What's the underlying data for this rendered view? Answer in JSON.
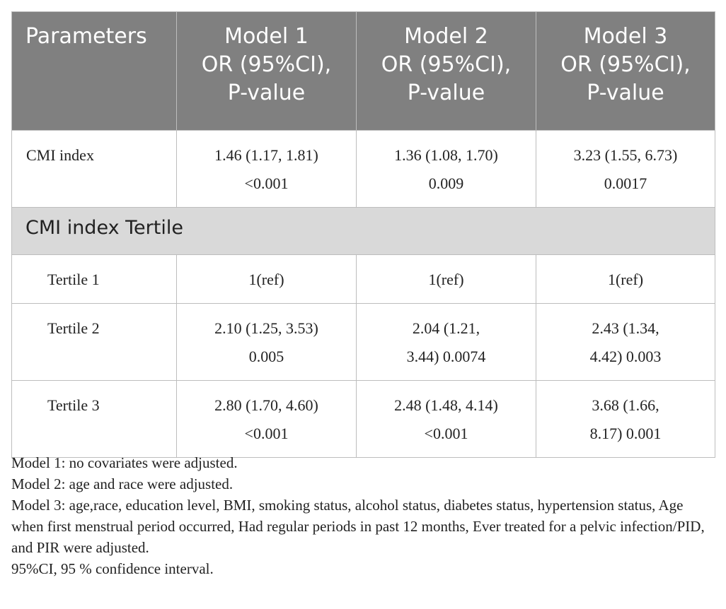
{
  "table": {
    "headers": [
      {
        "lines": [
          "Parameters"
        ]
      },
      {
        "lines": [
          "Model 1",
          "OR (95%CI),",
          "P-value"
        ]
      },
      {
        "lines": [
          "Model 2",
          "OR (95%CI),",
          "P-value"
        ]
      },
      {
        "lines": [
          "Model 3",
          "OR (95%CI),",
          "P-value"
        ]
      }
    ],
    "rows": {
      "cmi": {
        "label": "CMI index",
        "cells": [
          [
            "1.46 (1.17, 1.81)",
            "<0.001"
          ],
          [
            "1.36 (1.08, 1.70)",
            "0.009"
          ],
          [
            "3.23 (1.55, 6.73)",
            "0.0017"
          ]
        ]
      },
      "section": {
        "label": "CMI index Tertile"
      },
      "tertile1": {
        "label": "Tertile 1",
        "cells": [
          [
            "1(ref)"
          ],
          [
            "1(ref)"
          ],
          [
            "1(ref)"
          ]
        ]
      },
      "tertile2": {
        "label": "Tertile 2",
        "cells": [
          [
            "2.10 (1.25, 3.53)",
            "0.005"
          ],
          [
            "2.04 (1.21,",
            "3.44) 0.0074"
          ],
          [
            "2.43 (1.34,",
            "4.42) 0.003"
          ]
        ]
      },
      "tertile3": {
        "label": "Tertile 3",
        "cells": [
          [
            "2.80 (1.70, 4.60)",
            "<0.001"
          ],
          [
            "2.48 (1.48, 4.14)",
            "<0.001"
          ],
          [
            "3.68 (1.66,",
            "8.17) 0.001"
          ]
        ]
      }
    }
  },
  "notes": [
    "Model 1: no covariates were adjusted.",
    "Model 2: age and race were adjusted.",
    "Model 3: age,race, education level, BMI, smoking status, alcohol status, diabetes status, hypertension status, Age when first menstrual period occurred, Had regular periods in past 12 months, Ever treated for a pelvic infection/PID, and PIR were adjusted.",
    "95%CI, 95 % confidence interval."
  ]
}
